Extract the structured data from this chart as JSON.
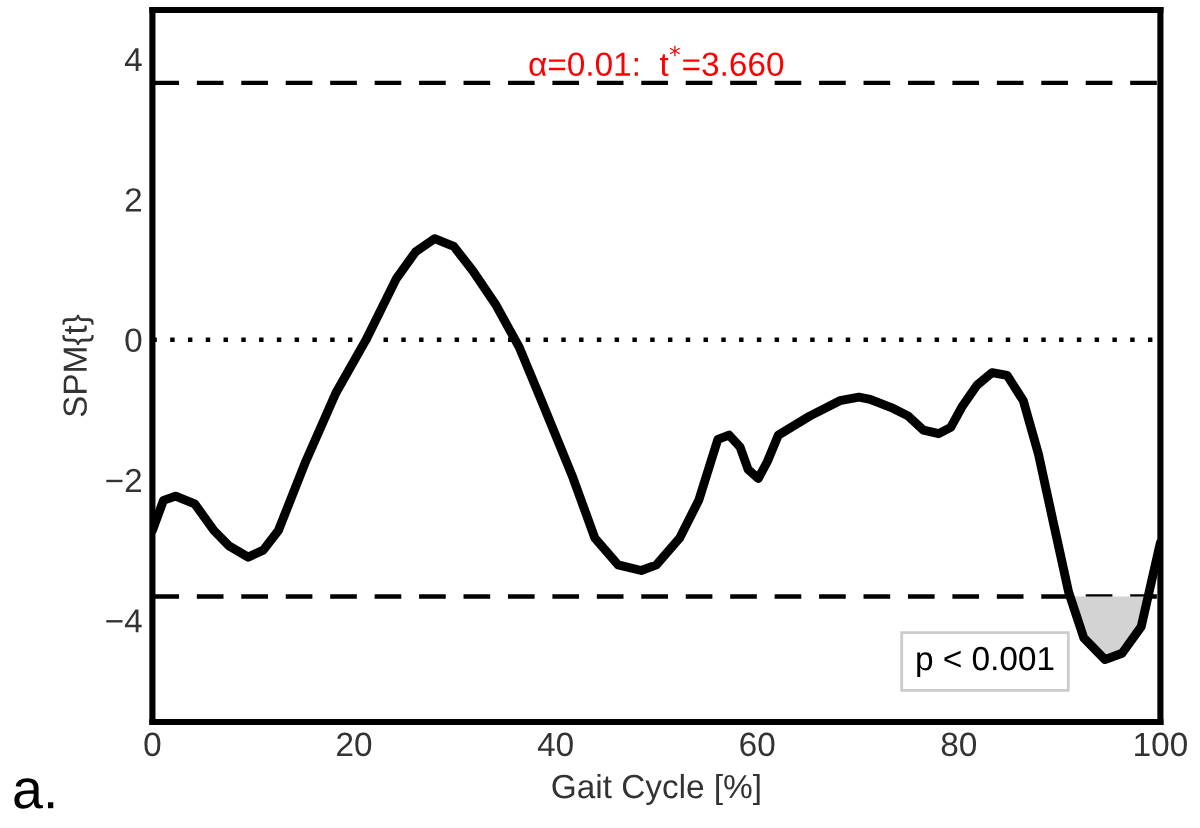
{
  "chart_data": {
    "type": "line",
    "xlabel": "Gait Cycle [%]",
    "ylabel": "SPM{t}",
    "xlim": [
      0,
      100
    ],
    "xticks": [
      0,
      20,
      40,
      60,
      80,
      100
    ],
    "ylim": [
      -5.45,
      4.7
    ],
    "yticks": [
      {
        "value": -4,
        "label": "−4"
      },
      {
        "value": -2,
        "label": "−2"
      },
      0,
      2,
      4
    ],
    "grid": false,
    "line_style": "solid",
    "marker": "none",
    "series": [
      {
        "color": "#000000",
        "x": [
          0,
          1.1,
          2.3,
          4.2,
          6.1,
          7.6,
          9.5,
          11,
          12.5,
          15.2,
          18.2,
          21.2,
          24.2,
          26.1,
          28,
          29.9,
          31.8,
          34.1,
          36.4,
          38.6,
          41.7,
          43.9,
          46.2,
          48.5,
          50,
          52.3,
          54.2,
          56.1,
          57.2,
          58.3,
          59.1,
          60.1,
          61,
          62.1,
          65.2,
          68.2,
          70.1,
          71.2,
          73.5,
          75,
          76.5,
          78,
          79.2,
          80.3,
          81.8,
          83.3,
          84.8,
          86.4,
          87.9,
          89.4,
          90.9,
          92.4,
          94.5,
          96.2,
          98.1,
          100
        ],
        "values": [
          -2.72,
          -2.29,
          -2.23,
          -2.34,
          -2.72,
          -2.94,
          -3.1,
          -3.0,
          -2.72,
          -1.74,
          -0.76,
          0,
          0.87,
          1.25,
          1.44,
          1.33,
          0.98,
          0.49,
          -0.11,
          -0.87,
          -1.96,
          -2.83,
          -3.21,
          -3.29,
          -3.21,
          -2.83,
          -2.29,
          -1.42,
          -1.36,
          -1.53,
          -1.85,
          -1.98,
          -1.74,
          -1.36,
          -1.09,
          -0.87,
          -0.82,
          -0.85,
          -0.98,
          -1.09,
          -1.29,
          -1.34,
          -1.25,
          -0.96,
          -0.65,
          -0.47,
          -0.51,
          -0.87,
          -1.63,
          -2.62,
          -3.6,
          -4.25,
          -4.56,
          -4.47,
          -4.09,
          -2.89
        ]
      },
      {
        "type": "area",
        "color": "#d3d3d3",
        "x": [
          91.0,
          92.4,
          94.5,
          96.2,
          98.1,
          98.8
        ],
        "values": [
          -3.66,
          -4.25,
          -4.56,
          -4.47,
          -4.09,
          -3.66
        ]
      }
    ],
    "ref_lines": [
      {
        "axis": "y",
        "value": 3.66,
        "line_style": "dashed",
        "color": "#000000"
      },
      {
        "axis": "y",
        "value": -3.66,
        "line_style": "dashed",
        "color": "#000000"
      },
      {
        "axis": "y",
        "value": 0,
        "line_style": "dotted",
        "color": "#000000"
      }
    ],
    "annotations": [
      {
        "text": "α=0.01:  t$^{*}$=3.660",
        "x": 50,
        "y": 3.66
      },
      "p < 0.001",
      "a."
    ],
    "legend": false
  }
}
